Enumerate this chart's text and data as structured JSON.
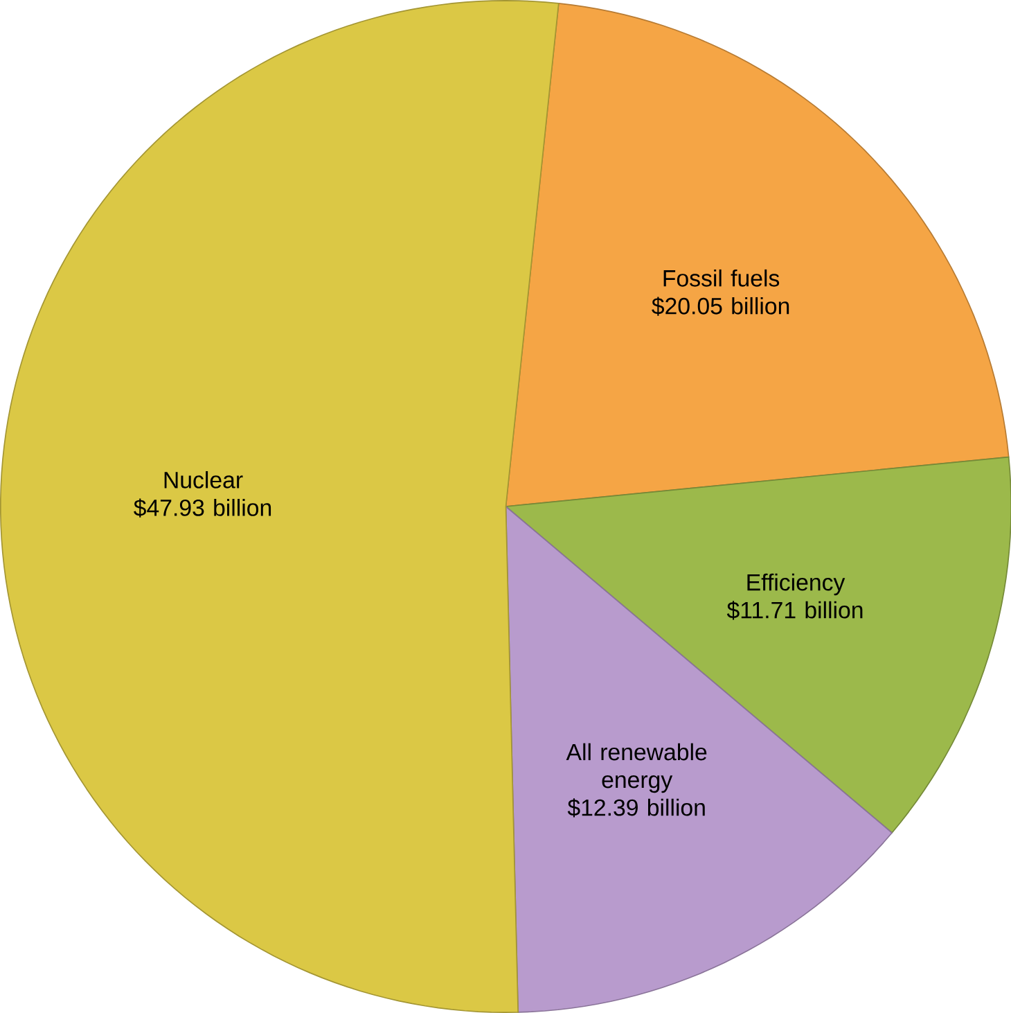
{
  "chart_data": {
    "type": "pie",
    "categories": [
      "Fossil fuels",
      "Efficiency",
      "All renewable energy",
      "Nuclear"
    ],
    "values": [
      20.05,
      11.71,
      12.39,
      47.93
    ],
    "value_labels": [
      "$20.05 billion",
      "$11.71 billion",
      "$12.39 billion",
      "$47.93 billion"
    ],
    "colors": [
      "#f5a545",
      "#9cb94b",
      "#b89bcd",
      "#dbc845"
    ]
  }
}
